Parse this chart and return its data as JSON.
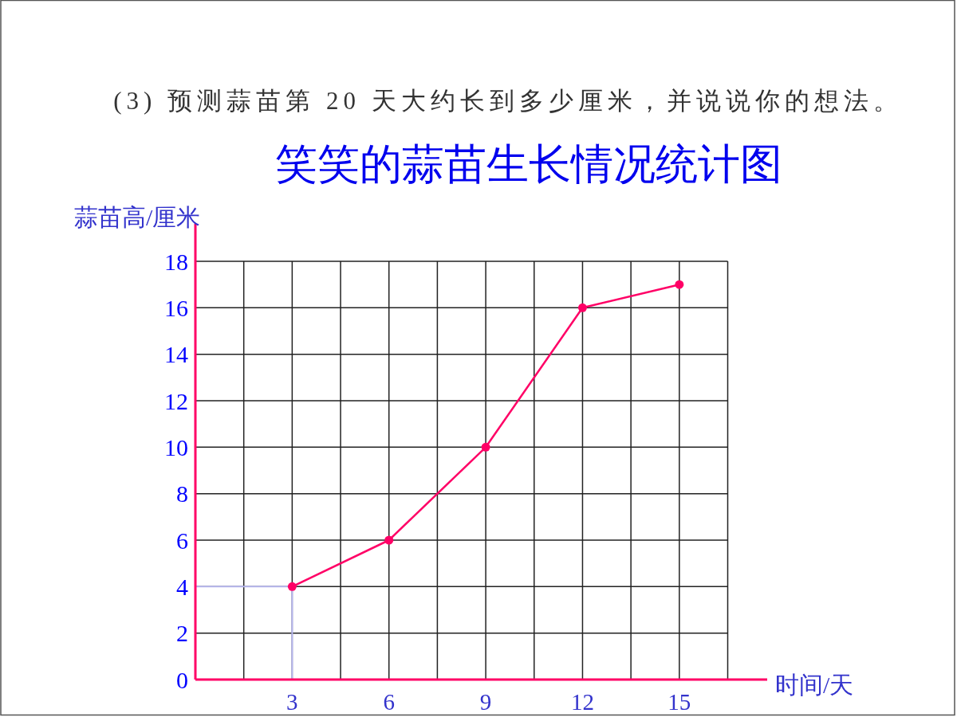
{
  "chart_data": {
    "type": "line",
    "title": "笑笑的蒜苗生长情况统计图",
    "annotations": [
      "(3) 预测蒜苗第 20 天大约长到多少厘米，并说说你的想法。"
    ],
    "xlabel": "时间/天",
    "ylabel": "蒜苗高/厘米",
    "x": [
      3,
      6,
      9,
      12,
      15
    ],
    "values": [
      4,
      6,
      10,
      16,
      17
    ],
    "color": "#ff0066",
    "marker": "circle",
    "line_style": "solid",
    "xlim": [
      0,
      16.5
    ],
    "xticks": [
      {
        "value": 1.5,
        "label": null
      },
      3,
      {
        "value": 4.5,
        "label": null
      },
      6,
      {
        "value": 7.5,
        "label": null
      },
      9,
      {
        "value": 10.5,
        "label": null
      },
      12,
      {
        "value": 13.5,
        "label": null
      },
      15,
      {
        "value": 16.5,
        "label": null
      }
    ],
    "ylim": [
      0,
      18
    ],
    "yticks": [
      0,
      2,
      4,
      6,
      8,
      10,
      12,
      14,
      16,
      18
    ],
    "grid": true,
    "ref_lines": [
      {
        "axis": "y",
        "value": 4,
        "color": "#b8b8f0"
      },
      {
        "axis": "x",
        "value": 3,
        "color": "#b8b8f0"
      }
    ]
  }
}
